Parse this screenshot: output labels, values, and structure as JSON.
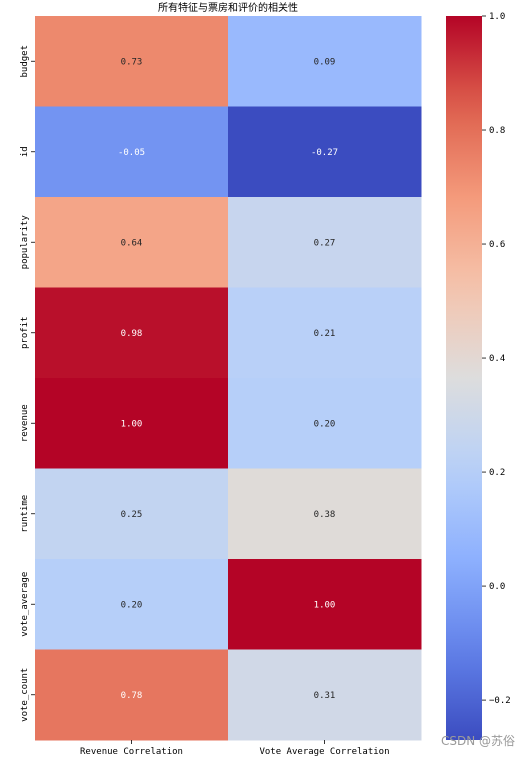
{
  "chart_data": {
    "type": "heatmap",
    "title": "所有特征与票房和评价的相关性",
    "x_categories": [
      "Revenue Correlation",
      "Vote Average Correlation"
    ],
    "y_categories": [
      "budget",
      "id",
      "popularity",
      "profit",
      "revenue",
      "runtime",
      "vote_average",
      "vote_count"
    ],
    "values": [
      [
        0.73,
        0.09
      ],
      [
        -0.05,
        -0.27
      ],
      [
        0.64,
        0.27
      ],
      [
        0.98,
        0.21
      ],
      [
        1.0,
        0.2
      ],
      [
        0.25,
        0.38
      ],
      [
        0.2,
        1.0
      ],
      [
        0.78,
        0.31
      ]
    ],
    "colormap": "coolwarm",
    "vmin": -0.27,
    "vmax": 1.0,
    "colorbar_ticks": [
      "1.0",
      "0.8",
      "0.6",
      "0.4",
      "0.2",
      "0.0",
      "−0.2"
    ],
    "colorbar_tick_values": [
      1.0,
      0.8,
      0.6,
      0.4,
      0.2,
      0.0,
      -0.2
    ]
  },
  "watermark": "CSDN @苏俗"
}
